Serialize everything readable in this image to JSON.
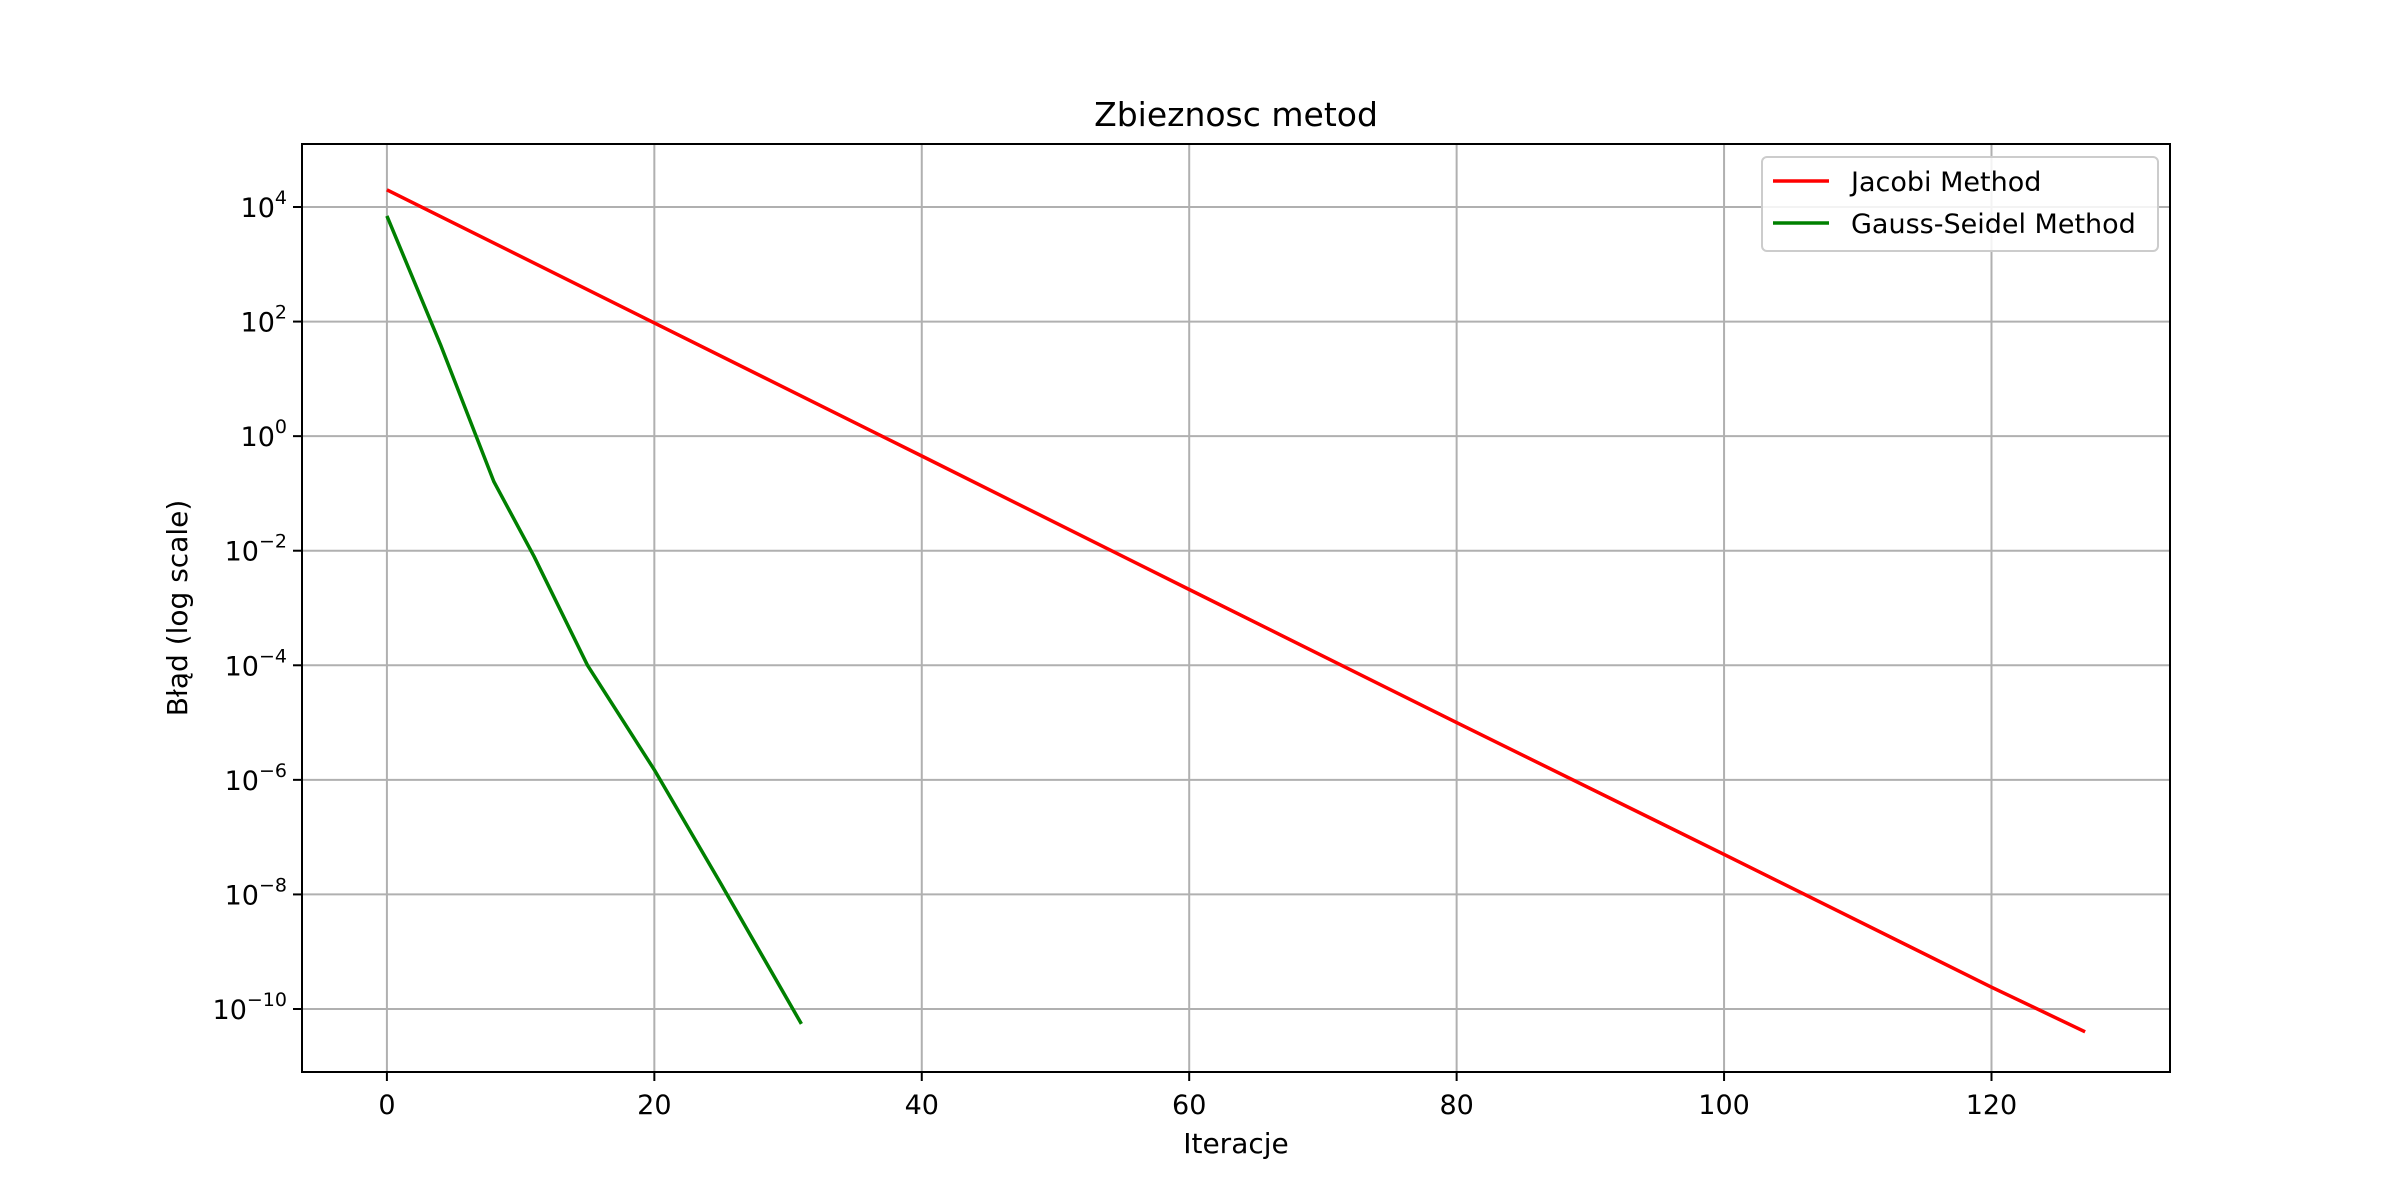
{
  "chart_data": {
    "type": "line",
    "title": "Zbieznosc metod",
    "xlabel": "Iteracje",
    "ylabel": "Błąd (log scale)",
    "xlim": [
      -6.35,
      133.35
    ],
    "ylim_log10": [
      -11.1,
      5.1
    ],
    "y_scale": "log",
    "grid": true,
    "legend_position": "top-right",
    "x_ticks": [
      0,
      20,
      40,
      60,
      80,
      100,
      120
    ],
    "x_tick_labels": [
      "0",
      "20",
      "40",
      "60",
      "80",
      "100",
      "120"
    ],
    "y_tick_exponents": [
      4,
      2,
      0,
      -2,
      -4,
      -6,
      -8,
      -10
    ],
    "y_tick_base": "10",
    "y_tick_sup_labels": [
      "4",
      "2",
      "0",
      "−2",
      "−4",
      "−6",
      "−8",
      "−10"
    ],
    "series": [
      {
        "name": "Jacobi Method",
        "color": "#ff0000",
        "x": [
          0,
          20,
          40,
          60,
          80,
          100,
          120,
          127
        ],
        "y": [
          20000,
          95,
          0.45,
          0.0021,
          1e-05,
          5e-08,
          2.4e-10,
          4e-11
        ]
      },
      {
        "name": "Gauss-Seidel Method",
        "color": "#008000",
        "x": [
          0,
          4,
          8,
          11,
          15,
          20,
          25,
          31
        ],
        "y": [
          7000,
          40,
          0.16,
          0.008,
          0.0001,
          1.5e-06,
          1.5e-08,
          5.5e-11
        ]
      }
    ]
  }
}
